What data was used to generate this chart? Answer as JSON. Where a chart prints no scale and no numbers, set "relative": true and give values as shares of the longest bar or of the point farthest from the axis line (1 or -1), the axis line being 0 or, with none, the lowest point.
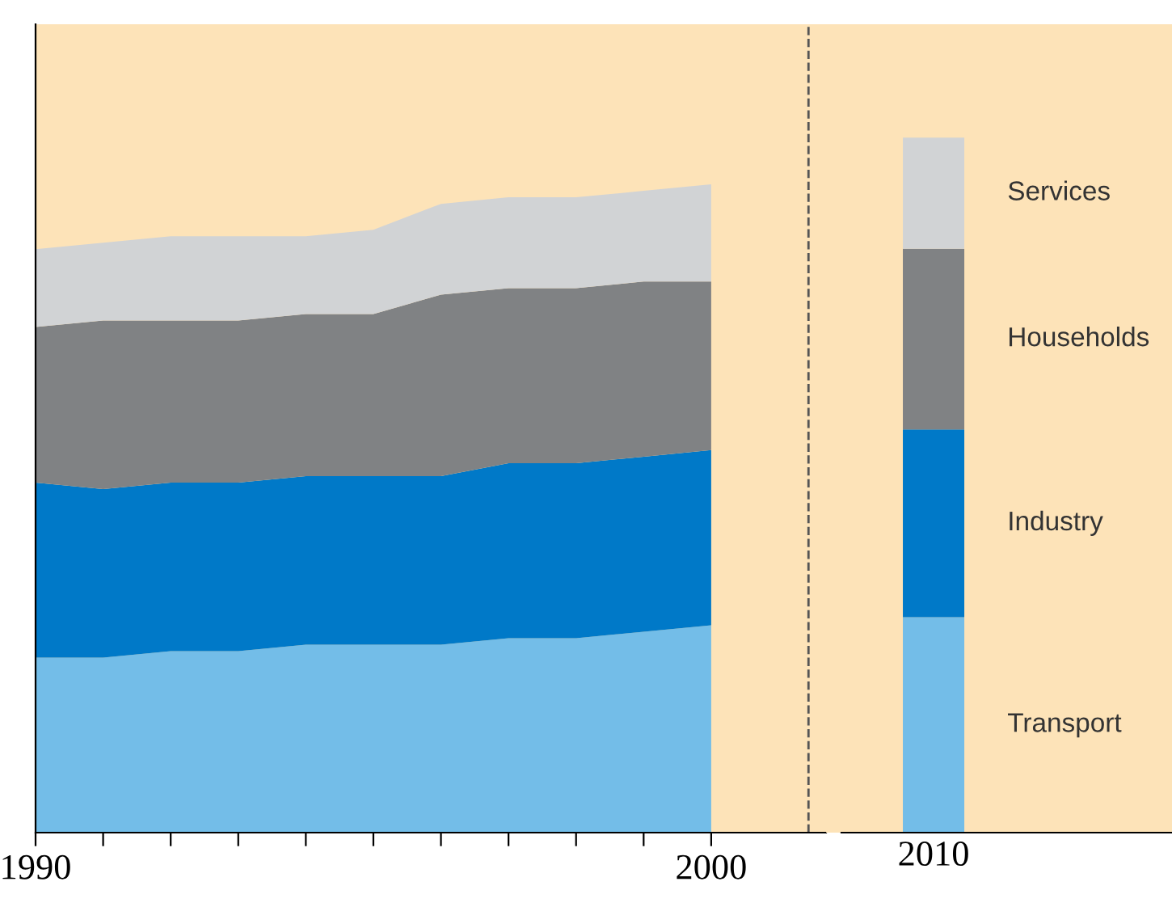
{
  "chart_data": [
    {
      "type": "area",
      "stacked": true,
      "relative": true,
      "x": [
        1990,
        1991,
        1992,
        1993,
        1994,
        1995,
        1996,
        1997,
        1998,
        1999,
        2000
      ],
      "xlim": [
        1990,
        2001.7
      ],
      "ref_lines": [
        {
          "axis": "x",
          "value": 2001.44,
          "color": "#555555",
          "line_style": "dashed"
        }
      ],
      "xticks": [
        1990,
        {
          "value": 1991,
          "label": null
        },
        {
          "value": 1992,
          "label": null
        },
        {
          "value": 1993,
          "label": null
        },
        {
          "value": 1994,
          "label": null
        },
        {
          "value": 1995,
          "label": null
        },
        {
          "value": 1996,
          "label": null
        },
        {
          "value": 1997,
          "label": null
        },
        {
          "value": 1998,
          "label": null
        },
        {
          "value": 1999,
          "label": null
        },
        2000
      ],
      "tick_labels": "x",
      "grid": false,
      "legend": false,
      "series": [
        {
          "color": "#73bde8",
          "values": [
            0.27,
            0.27,
            0.28,
            0.28,
            0.29,
            0.29,
            0.29,
            0.3,
            0.3,
            0.31,
            0.32
          ]
        },
        {
          "color": "#0079c8",
          "values": [
            0.27,
            0.26,
            0.26,
            0.26,
            0.26,
            0.26,
            0.26,
            0.27,
            0.27,
            0.27,
            0.27
          ]
        },
        {
          "color": "#808284",
          "values": [
            0.24,
            0.26,
            0.25,
            0.25,
            0.25,
            0.25,
            0.28,
            0.27,
            0.27,
            0.27,
            0.26
          ]
        },
        {
          "color": "#d1d3d5",
          "values": [
            0.12,
            0.12,
            0.13,
            0.13,
            0.12,
            0.13,
            0.14,
            0.14,
            0.14,
            0.14,
            0.15
          ]
        }
      ]
    },
    {
      "type": "bar",
      "stacked": true,
      "relative": true,
      "categories": [
        "2010"
      ],
      "tick_labels": "x",
      "grid": false,
      "legend": false,
      "series": [
        {
          "name": "Transport",
          "color": "#73bde8",
          "values": [
            0.31
          ]
        },
        {
          "name": "Industry",
          "color": "#0079c8",
          "values": [
            0.27
          ]
        },
        {
          "name": "Households",
          "color": "#808284",
          "values": [
            0.26
          ]
        },
        {
          "name": "Services",
          "color": "#d1d3d5",
          "values": [
            0.16
          ]
        }
      ]
    }
  ]
}
